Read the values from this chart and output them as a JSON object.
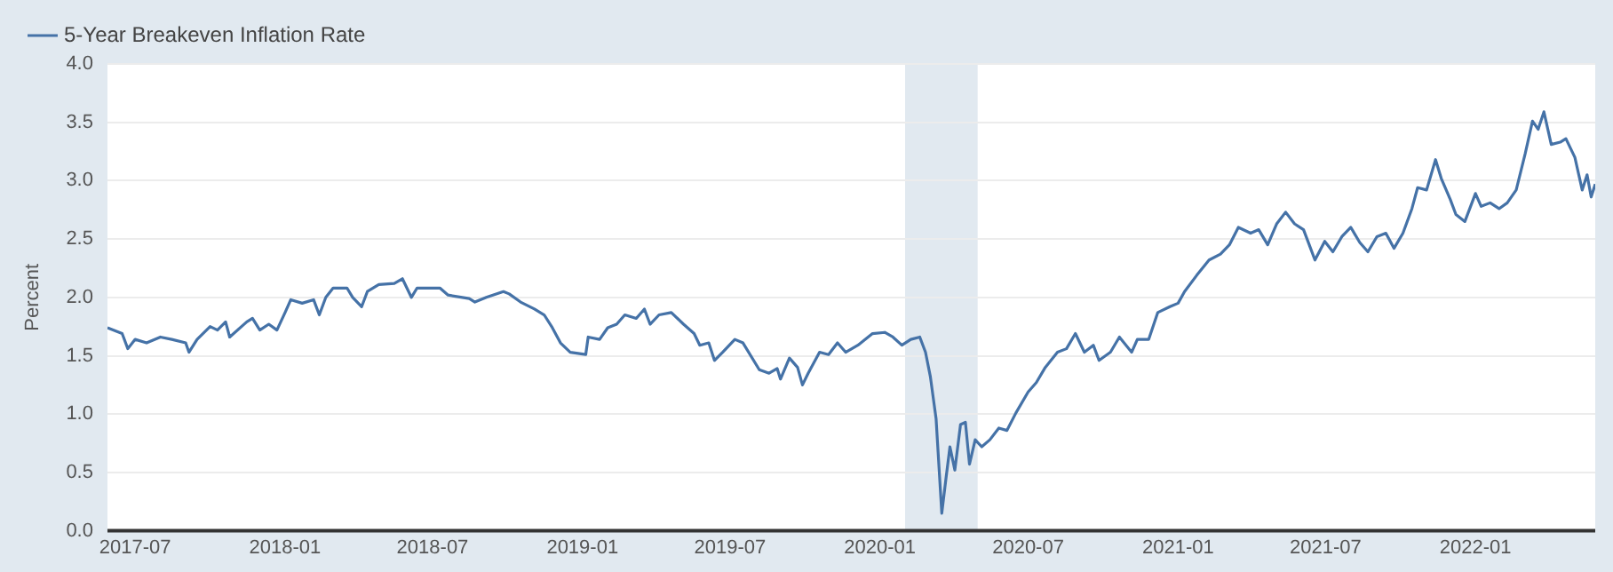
{
  "chart_data": {
    "type": "line",
    "ylabel": "Percent",
    "xlim": [
      "2017-05-28",
      "2022-05-28"
    ],
    "xticks": [
      "2017-07",
      "2018-01",
      "2018-07",
      "2019-01",
      "2019-07",
      "2020-01",
      "2020-07",
      "2021-01",
      "2021-07",
      "2022-01"
    ],
    "ylim": [
      0,
      4
    ],
    "yticks": [
      {
        "value": 0,
        "label": "0.0"
      },
      {
        "value": 0.5,
        "label": "0.5"
      },
      {
        "value": 1,
        "label": "1.0"
      },
      {
        "value": 1.5,
        "label": "1.5"
      },
      {
        "value": 2,
        "label": "2.0"
      },
      {
        "value": 2.5,
        "label": "2.5"
      },
      {
        "value": 3,
        "label": "3.0"
      },
      {
        "value": 3.5,
        "label": "3.5"
      },
      {
        "value": 4,
        "label": "4.0"
      }
    ],
    "grid": "y",
    "legend": "top left",
    "marker": "none",
    "line_style": "solid",
    "bands": [
      {
        "axis": "x",
        "from": "2020-02-01",
        "to": "2020-04-30",
        "color": "#e1e9f0"
      }
    ],
    "x": [
      "2017-05-28",
      "2017-06-15",
      "2017-06-22",
      "2017-07-01",
      "2017-07-15",
      "2017-08-01",
      "2017-08-15",
      "2017-09-01",
      "2017-09-05",
      "2017-09-15",
      "2017-10-01",
      "2017-10-10",
      "2017-10-20",
      "2017-10-25",
      "2017-11-15",
      "2017-11-22",
      "2017-12-01",
      "2017-12-12",
      "2017-12-22",
      "2018-01-01",
      "2018-01-08",
      "2018-01-22",
      "2018-02-05",
      "2018-02-12",
      "2018-02-20",
      "2018-03-01",
      "2018-03-18",
      "2018-03-25",
      "2018-04-05",
      "2018-04-12",
      "2018-04-26",
      "2018-05-15",
      "2018-05-25",
      "2018-06-05",
      "2018-06-12",
      "2018-07-01",
      "2018-07-10",
      "2018-07-20",
      "2018-08-15",
      "2018-08-22",
      "2018-09-05",
      "2018-09-26",
      "2018-10-03",
      "2018-10-17",
      "2018-11-03",
      "2018-11-15",
      "2018-11-25",
      "2018-12-05",
      "2018-12-17",
      "2019-01-05",
      "2019-01-08",
      "2019-01-22",
      "2019-02-01",
      "2019-02-12",
      "2019-02-22",
      "2019-03-08",
      "2019-03-18",
      "2019-03-25",
      "2019-04-05",
      "2019-04-20",
      "2019-05-05",
      "2019-05-18",
      "2019-05-25",
      "2019-06-05",
      "2019-06-12",
      "2019-06-22",
      "2019-07-07",
      "2019-07-17",
      "2019-08-06",
      "2019-08-18",
      "2019-08-28",
      "2019-09-01",
      "2019-09-12",
      "2019-09-22",
      "2019-09-28",
      "2019-10-05",
      "2019-10-19",
      "2019-10-30",
      "2019-11-10",
      "2019-11-20",
      "2019-12-05",
      "2019-12-23",
      "2020-01-07",
      "2020-01-17",
      "2020-01-28",
      "2020-02-08",
      "2020-02-19",
      "2020-02-26",
      "2020-03-03",
      "2020-03-10",
      "2020-03-17",
      "2020-03-22",
      "2020-03-27",
      "2020-04-02",
      "2020-04-09",
      "2020-04-15",
      "2020-04-20",
      "2020-04-27",
      "2020-05-05",
      "2020-05-15",
      "2020-05-26",
      "2020-06-05",
      "2020-06-16",
      "2020-07-01",
      "2020-07-11",
      "2020-07-22",
      "2020-08-06",
      "2020-08-17",
      "2020-08-28",
      "2020-09-08",
      "2020-09-19",
      "2020-09-26",
      "2020-10-10",
      "2020-10-21",
      "2020-11-05",
      "2020-11-12",
      "2020-11-26",
      "2020-12-07",
      "2020-12-22",
      "2021-01-01",
      "2021-01-09",
      "2021-01-24",
      "2021-02-08",
      "2021-02-22",
      "2021-03-05",
      "2021-03-16",
      "2021-03-31",
      "2021-04-10",
      "2021-04-21",
      "2021-05-02",
      "2021-05-13",
      "2021-05-24",
      "2021-06-04",
      "2021-06-11",
      "2021-06-18",
      "2021-06-30",
      "2021-07-10",
      "2021-07-21",
      "2021-08-01",
      "2021-08-12",
      "2021-08-22",
      "2021-09-02",
      "2021-09-13",
      "2021-09-23",
      "2021-10-04",
      "2021-10-15",
      "2021-10-22",
      "2021-11-02",
      "2021-11-13",
      "2021-11-20",
      "2021-12-01",
      "2021-12-08",
      "2021-12-19",
      "2022-01-01",
      "2022-01-08",
      "2022-01-19",
      "2022-01-30",
      "2022-02-09",
      "2022-02-20",
      "2022-03-03",
      "2022-03-12",
      "2022-03-19",
      "2022-03-26",
      "2022-04-04",
      "2022-04-15",
      "2022-04-22",
      "2022-05-03",
      "2022-05-12",
      "2022-05-18",
      "2022-05-23",
      "2022-05-28"
    ],
    "series": [
      {
        "name": "5-Year Breakeven Inflation Rate",
        "color": "#4572a7",
        "values": [
          1.74,
          1.69,
          1.56,
          1.64,
          1.61,
          1.66,
          1.64,
          1.61,
          1.53,
          1.64,
          1.75,
          1.72,
          1.79,
          1.66,
          1.79,
          1.82,
          1.72,
          1.77,
          1.72,
          1.87,
          1.98,
          1.95,
          1.98,
          1.85,
          2.0,
          2.08,
          2.08,
          2.0,
          1.92,
          2.05,
          2.11,
          2.12,
          2.16,
          2.0,
          2.08,
          2.08,
          2.08,
          2.02,
          1.99,
          1.96,
          2.0,
          2.05,
          2.03,
          1.96,
          1.9,
          1.85,
          1.74,
          1.61,
          1.53,
          1.51,
          1.66,
          1.64,
          1.74,
          1.77,
          1.85,
          1.82,
          1.9,
          1.77,
          1.85,
          1.87,
          1.77,
          1.69,
          1.59,
          1.61,
          1.46,
          1.53,
          1.64,
          1.61,
          1.38,
          1.35,
          1.39,
          1.3,
          1.48,
          1.4,
          1.25,
          1.35,
          1.53,
          1.51,
          1.61,
          1.53,
          1.59,
          1.69,
          1.7,
          1.66,
          1.59,
          1.64,
          1.66,
          1.53,
          1.32,
          0.96,
          0.15,
          0.44,
          0.72,
          0.52,
          0.91,
          0.93,
          0.57,
          0.78,
          0.72,
          0.78,
          0.88,
          0.86,
          1.01,
          1.19,
          1.27,
          1.4,
          1.53,
          1.56,
          1.69,
          1.53,
          1.59,
          1.46,
          1.53,
          1.66,
          1.53,
          1.64,
          1.64,
          1.87,
          1.92,
          1.95,
          2.05,
          2.19,
          2.32,
          2.37,
          2.45,
          2.6,
          2.55,
          2.58,
          2.45,
          2.63,
          2.73,
          2.63,
          2.58,
          2.45,
          2.32,
          2.48,
          2.39,
          2.52,
          2.6,
          2.47,
          2.39,
          2.52,
          2.55,
          2.42,
          2.55,
          2.76,
          2.94,
          2.92,
          3.18,
          3.02,
          2.84,
          2.71,
          2.65,
          2.89,
          2.78,
          2.81,
          2.76,
          2.81,
          2.92,
          3.23,
          3.51,
          3.44,
          3.59,
          3.31,
          3.33,
          3.36,
          3.2,
          2.92,
          3.05,
          2.86,
          2.97
        ]
      }
    ]
  }
}
